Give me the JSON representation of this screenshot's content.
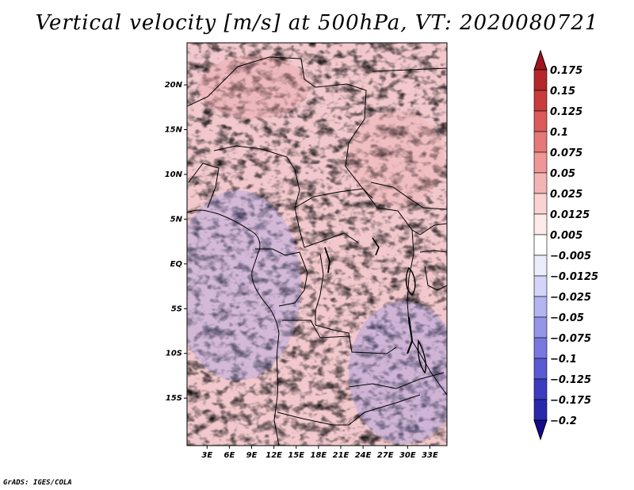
{
  "title": "Vertical velocity [m/s] at 500hPa, VT: 2020080721",
  "credit": "GrADS: IGES/COLA",
  "map": {
    "variable": "Vertical velocity",
    "units": "m/s",
    "level": "500hPa",
    "valid_time": "2020080721",
    "lon_range": [
      0.3,
      35.3
    ],
    "lat_range": [
      -20.3,
      24.7
    ],
    "lon_ticks": [
      "3E",
      "6E",
      "9E",
      "12E",
      "15E",
      "18E",
      "21E",
      "24E",
      "27E",
      "30E",
      "33E"
    ],
    "lat_ticks": [
      "20N",
      "15N",
      "10N",
      "5N",
      "EQ",
      "5S",
      "10S",
      "15S"
    ],
    "lon_tick_values": [
      3,
      6,
      9,
      12,
      15,
      18,
      21,
      24,
      27,
      30,
      33
    ],
    "lat_tick_values": [
      20,
      15,
      10,
      5,
      0,
      -5,
      -10,
      -15
    ]
  },
  "colorbar": {
    "labels": [
      "0.175",
      "0.15",
      "0.125",
      "0.1",
      "0.075",
      "0.05",
      "0.025",
      "0.0125",
      "0.005",
      "−0.005",
      "−0.0125",
      "−0.025",
      "−0.05",
      "−0.075",
      "−0.1",
      "−0.125",
      "−0.175",
      "−0.2"
    ],
    "colors": [
      "#a0141e",
      "#b4282c",
      "#c83c3c",
      "#dc5a5a",
      "#e67878",
      "#f09696",
      "#f5b4b4",
      "#fad2d2",
      "#fdeaea",
      "#ffffff",
      "#ececfc",
      "#d4d4f8",
      "#b4b4f0",
      "#9696e8",
      "#7878e0",
      "#5a5ad2",
      "#3c3cbe",
      "#2828aa",
      "#140a8c"
    ]
  }
}
